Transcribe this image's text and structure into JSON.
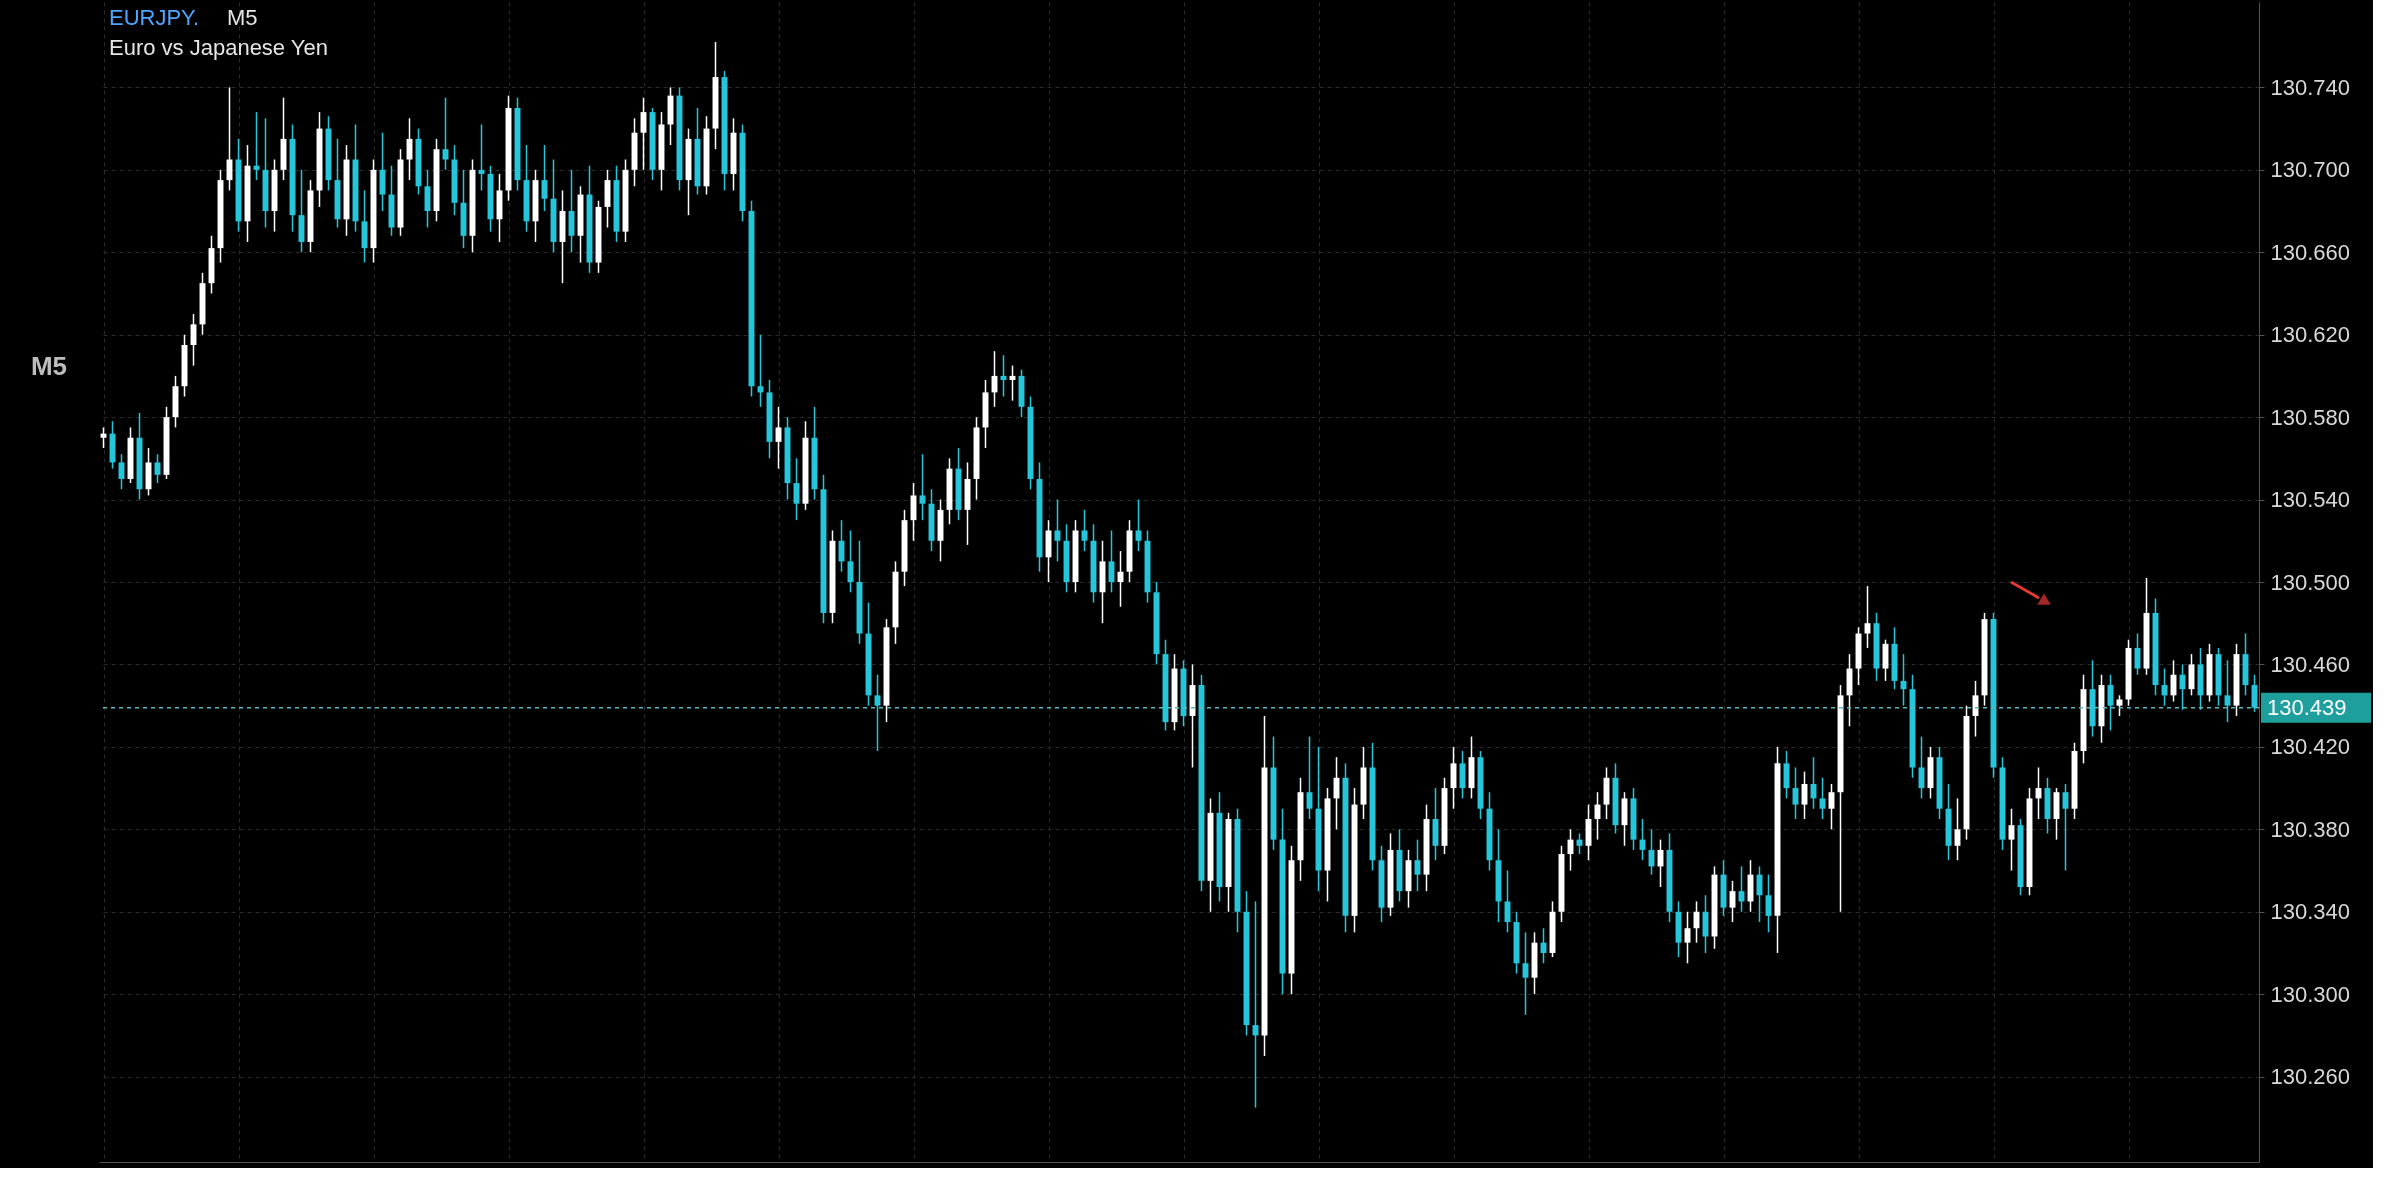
{
  "chart_data": {
    "type": "candlestick",
    "title": "EURJPY.",
    "subtitle": "Euro vs Japanese Yen",
    "annotations": [
      "M5",
      "M5"
    ],
    "colors": [
      "#ffffff",
      "#26c6da",
      "#26c6da",
      "#ffffff",
      "#26c6da",
      "#ffffff",
      "#26c6da",
      "#ffffff",
      "#ffffff",
      "#ffffff",
      "#ffffff",
      "#ffffff",
      "#ffffff",
      "#ffffff",
      "#ffffff",
      "#26c6da",
      "#ffffff",
      "#26c6da",
      "#26c6da",
      "#ffffff",
      "#ffffff",
      "#26c6da",
      "#26c6da",
      "#ffffff",
      "#ffffff",
      "#26c6da",
      "#26c6da",
      "#ffffff",
      "#26c6da",
      "#26c6da",
      "#ffffff",
      "#26c6da",
      "#26c6da",
      "#ffffff",
      "#ffffff",
      "#26c6da",
      "#26c6da",
      "#ffffff",
      "#26c6da",
      "#26c6da",
      "#26c6da",
      "#ffffff",
      "#26c6da",
      "#26c6da",
      "#ffffff",
      "#ffffff",
      "#26c6da",
      "#26c6da",
      "#ffffff",
      "#26c6da",
      "#26c6da",
      "#ffffff",
      "#26c6da",
      "#ffffff",
      "#26c6da",
      "#ffffff",
      "#ffffff",
      "#26c6da",
      "#ffffff",
      "#ffffff",
      "#ffffff",
      "#26c6da",
      "#ffffff",
      "#ffffff",
      "#26c6da",
      "#ffffff",
      "#26c6da",
      "#ffffff",
      "#ffffff",
      "#26c6da",
      "#ffffff",
      "#26c6da",
      "#26c6da",
      "#26c6da",
      "#26c6da",
      "#ffffff",
      "#26c6da",
      "#26c6da",
      "#ffffff",
      "#26c6da",
      "#26c6da",
      "#ffffff",
      "#26c6da",
      "#26c6da",
      "#26c6da",
      "#26c6da",
      "#26c6da",
      "#ffffff",
      "#ffffff",
      "#ffffff",
      "#ffffff",
      "#26c6da",
      "#26c6da",
      "#ffffff",
      "#ffffff",
      "#26c6da",
      "#ffffff",
      "#ffffff",
      "#ffffff",
      "#ffffff",
      "#26c6da",
      "#ffffff",
      "#26c6da",
      "#26c6da",
      "#26c6da",
      "#ffffff",
      "#26c6da",
      "#26c6da",
      "#ffffff",
      "#26c6da",
      "#26c6da",
      "#ffffff",
      "#26c6da",
      "#ffffff",
      "#ffffff",
      "#26c6da",
      "#26c6da",
      "#26c6da",
      "#26c6da",
      "#ffffff",
      "#26c6da",
      "#ffffff",
      "#26c6da",
      "#ffffff",
      "#26c6da",
      "#ffffff",
      "#26c6da",
      "#26c6da",
      "#26c6da",
      "#ffffff",
      "#26c6da",
      "#26c6da",
      "#ffffff",
      "#ffffff",
      "#26c6da",
      "#26c6da",
      "#ffffff",
      "#ffffff",
      "#26c6da",
      "#ffffff",
      "#ffffff",
      "#26c6da",
      "#26c6da",
      "#ffffff",
      "#26c6da",
      "#ffffff",
      "#26c6da",
      "#ffffff",
      "#26c6da",
      "#ffffff",
      "#ffffff",
      "#26c6da",
      "#ffffff",
      "#26c6da",
      "#26c6da",
      "#26c6da",
      "#26c6da",
      "#26c6da",
      "#26c6da",
      "#ffffff",
      "#26c6da",
      "#ffffff",
      "#ffffff",
      "#ffffff",
      "#26c6da",
      "#ffffff",
      "#ffffff",
      "#ffffff",
      "#26c6da",
      "#ffffff",
      "#26c6da",
      "#26c6da",
      "#26c6da",
      "#ffffff",
      "#26c6da",
      "#26c6da",
      "#ffffff",
      "#ffffff",
      "#26c6da",
      "#ffffff",
      "#26c6da",
      "#ffffff",
      "#26c6da",
      "#ffffff",
      "#26c6da",
      "#26c6da",
      "#ffffff",
      "#26c6da",
      "#26c6da",
      "#ffffff",
      "#26c6da",
      "#26c6da",
      "#ffffff",
      "#ffffff",
      "#ffffff",
      "#ffffff",
      "#ffffff",
      "#26c6da",
      "#ffffff",
      "#26c6da",
      "#26c6da",
      "#26c6da",
      "#26c6da",
      "#ffffff",
      "#26c6da",
      "#26c6da",
      "#ffffff",
      "#ffffff",
      "#ffffff",
      "#ffffff",
      "#26c6da",
      "#26c6da",
      "#ffffff",
      "#26c6da",
      "#ffffff",
      "#ffffff",
      "#26c6da",
      "#ffffff",
      "#26c6da",
      "#ffffff",
      "#ffffff",
      "#26c6da",
      "#ffffff",
      "#26c6da",
      "#ffffff",
      "#ffffff",
      "#26c6da",
      "#ffffff",
      "#26c6da",
      "#26c6da",
      "#ffffff",
      "#26c6da",
      "#ffffff",
      "#26c6da",
      "#ffffff",
      "#26c6da",
      "#26c6da",
      "#ffffff",
      "#26c6da",
      "#26c6da"
    ],
    "ylim": [
      130.221,
      130.779
    ],
    "yticks": [
      {
        "value": 130.26,
        "label": "130.260"
      },
      {
        "value": 130.3,
        "label": "130.300"
      },
      {
        "value": 130.34,
        "label": "130.340"
      },
      {
        "value": 130.38,
        "label": "130.380"
      },
      {
        "value": 130.42,
        "label": "130.420"
      },
      {
        "value": 130.46,
        "label": "130.460"
      },
      {
        "value": 130.5,
        "label": "130.500"
      },
      {
        "value": 130.54,
        "label": "130.540"
      },
      {
        "value": 130.58,
        "label": "130.580"
      },
      {
        "value": 130.62,
        "label": "130.620"
      },
      {
        "value": 130.66,
        "label": "130.660"
      },
      {
        "value": 130.7,
        "label": "130.700"
      },
      {
        "value": 130.74,
        "label": "130.740"
      }
    ],
    "grid": true,
    "ref_lines": [
      {
        "axis": "y",
        "value": 130.439,
        "label": "130.439",
        "color": "#5fb8b8",
        "line_style": "dashed"
      }
    ],
    "categories": [
      null,
      null,
      null,
      null,
      null,
      null,
      null,
      null,
      null,
      null,
      null,
      null,
      null,
      null,
      null,
      null,
      null,
      null,
      null,
      null,
      null,
      null,
      null,
      null,
      null,
      null,
      null,
      null,
      null,
      null,
      null,
      null,
      null,
      null,
      null,
      null,
      null,
      null,
      null,
      null,
      null,
      null,
      null,
      null,
      null,
      null,
      null,
      null,
      null,
      null,
      null,
      null,
      null,
      null,
      null,
      null,
      null,
      null,
      null,
      null,
      null,
      null,
      null,
      null,
      null,
      null,
      null,
      null,
      null,
      null,
      null,
      null,
      null,
      null,
      null,
      null,
      null,
      null,
      null,
      null,
      null,
      null,
      null,
      null,
      null,
      null,
      null,
      null,
      null,
      null,
      null,
      null,
      null,
      null,
      null,
      null,
      null,
      null,
      null,
      null,
      null,
      null,
      null,
      null,
      null,
      null,
      null,
      null,
      null,
      null,
      null,
      null,
      null,
      null,
      null,
      null,
      null,
      null,
      null,
      null,
      null,
      null,
      null,
      null,
      null,
      null,
      null,
      null,
      null,
      null,
      null,
      null,
      null,
      null,
      null,
      null,
      null,
      null,
      null,
      null,
      null,
      null,
      null,
      null,
      null,
      null,
      null,
      null,
      null,
      null,
      null,
      null,
      null,
      null,
      null,
      null,
      null,
      null,
      null,
      null,
      null,
      null,
      null,
      null,
      null,
      null,
      null,
      null,
      null,
      null,
      null,
      null,
      null,
      null,
      null,
      null,
      null,
      null,
      null,
      null,
      null,
      null,
      null,
      null,
      null,
      null,
      null,
      null,
      null,
      null,
      null,
      null,
      null,
      null,
      null,
      null,
      null,
      null,
      null,
      null,
      null,
      null,
      null,
      null,
      null,
      null,
      null,
      null,
      null,
      null,
      null,
      null,
      null,
      null,
      null,
      null,
      null,
      null,
      null,
      null,
      null,
      null,
      null,
      null,
      null,
      null,
      null,
      null,
      null,
      null,
      null,
      null,
      null,
      null,
      null,
      null,
      null,
      null,
      null,
      null
    ],
    "ohlc": [
      [
        130.57,
        130.575,
        130.565,
        130.572
      ],
      [
        130.572,
        130.578,
        130.555,
        130.558
      ],
      [
        130.558,
        130.562,
        130.545,
        130.55
      ],
      [
        130.55,
        130.575,
        130.548,
        130.57
      ],
      [
        130.57,
        130.582,
        130.54,
        130.545
      ],
      [
        130.545,
        130.565,
        130.542,
        130.558
      ],
      [
        130.558,
        130.562,
        130.548,
        130.552
      ],
      [
        130.552,
        130.585,
        130.55,
        130.58
      ],
      [
        130.58,
        130.6,
        130.575,
        130.595
      ],
      [
        130.595,
        130.62,
        130.59,
        130.615
      ],
      [
        130.615,
        130.63,
        130.605,
        130.625
      ],
      [
        130.625,
        130.65,
        130.62,
        130.645
      ],
      [
        130.645,
        130.668,
        130.64,
        130.662
      ],
      [
        130.662,
        130.7,
        130.655,
        130.695
      ],
      [
        130.695,
        130.74,
        130.69,
        130.705
      ],
      [
        130.705,
        130.715,
        130.67,
        130.675
      ],
      [
        130.675,
        130.712,
        130.665,
        130.702
      ],
      [
        130.702,
        130.728,
        130.695,
        130.7
      ],
      [
        130.7,
        130.725,
        130.672,
        130.68
      ],
      [
        130.68,
        130.705,
        130.67,
        130.7
      ],
      [
        130.7,
        130.735,
        130.695,
        130.715
      ],
      [
        130.715,
        130.722,
        130.67,
        130.678
      ],
      [
        130.678,
        130.7,
        130.66,
        130.665
      ],
      [
        130.665,
        130.695,
        130.66,
        130.69
      ],
      [
        130.69,
        130.728,
        130.682,
        130.72
      ],
      [
        130.72,
        130.726,
        130.69,
        130.695
      ],
      [
        130.695,
        130.715,
        130.672,
        130.676
      ],
      [
        130.676,
        130.712,
        130.668,
        130.705
      ],
      [
        130.705,
        130.722,
        130.67,
        130.675
      ],
      [
        130.675,
        130.69,
        130.655,
        130.662
      ],
      [
        130.662,
        130.705,
        130.655,
        130.7
      ],
      [
        130.7,
        130.718,
        130.68,
        130.688
      ],
      [
        130.688,
        130.702,
        130.668,
        130.672
      ],
      [
        130.672,
        130.71,
        130.668,
        130.705
      ],
      [
        130.705,
        130.725,
        130.695,
        130.715
      ],
      [
        130.715,
        130.72,
        130.688,
        130.692
      ],
      [
        130.692,
        130.7,
        130.672,
        130.68
      ],
      [
        130.68,
        130.715,
        130.675,
        130.71
      ],
      [
        130.71,
        130.735,
        130.7,
        130.705
      ],
      [
        130.705,
        130.712,
        130.678,
        130.684
      ],
      [
        130.684,
        130.7,
        130.662,
        130.668
      ],
      [
        130.668,
        130.705,
        130.66,
        130.7
      ],
      [
        130.7,
        130.722,
        130.69,
        130.698
      ],
      [
        130.698,
        130.702,
        130.67,
        130.676
      ],
      [
        130.676,
        130.698,
        130.665,
        130.69
      ],
      [
        130.69,
        130.736,
        130.685,
        130.73
      ],
      [
        130.73,
        130.735,
        130.69,
        130.695
      ],
      [
        130.695,
        130.712,
        130.67,
        130.675
      ],
      [
        130.675,
        130.7,
        130.665,
        130.695
      ],
      [
        130.695,
        130.712,
        130.68,
        130.686
      ],
      [
        130.686,
        130.705,
        130.66,
        130.665
      ],
      [
        130.665,
        130.69,
        130.645,
        130.68
      ],
      [
        130.68,
        130.7,
        130.66,
        130.668
      ],
      [
        130.668,
        130.692,
        130.655,
        130.688
      ],
      [
        130.688,
        130.702,
        130.65,
        130.655
      ],
      [
        130.655,
        130.685,
        130.65,
        130.682
      ],
      [
        130.682,
        130.7,
        130.672,
        130.695
      ],
      [
        130.695,
        130.702,
        130.665,
        130.67
      ],
      [
        130.67,
        130.705,
        130.665,
        130.7
      ],
      [
        130.7,
        130.725,
        130.692,
        130.718
      ],
      [
        130.718,
        130.735,
        130.7,
        130.728
      ],
      [
        130.728,
        130.73,
        130.695,
        130.7
      ],
      [
        130.7,
        130.728,
        130.69,
        130.722
      ],
      [
        130.722,
        130.74,
        130.712,
        130.736
      ],
      [
        130.736,
        130.74,
        130.69,
        130.695
      ],
      [
        130.695,
        130.72,
        130.678,
        130.715
      ],
      [
        130.715,
        130.73,
        130.688,
        130.692
      ],
      [
        130.692,
        130.726,
        130.688,
        130.72
      ],
      [
        130.72,
        130.762,
        130.71,
        130.745
      ],
      [
        130.745,
        130.748,
        130.69,
        130.698
      ],
      [
        130.698,
        130.725,
        130.69,
        130.718
      ],
      [
        130.718,
        130.722,
        130.675,
        130.68
      ],
      [
        130.68,
        130.685,
        130.59,
        130.595
      ],
      [
        130.595,
        130.62,
        130.585,
        130.592
      ],
      [
        130.592,
        130.598,
        130.56,
        130.568
      ],
      [
        130.568,
        130.585,
        130.555,
        130.575
      ],
      [
        130.575,
        130.58,
        130.54,
        130.548
      ],
      [
        130.548,
        130.56,
        130.53,
        130.538
      ],
      [
        130.538,
        130.578,
        130.535,
        130.57
      ],
      [
        130.57,
        130.585,
        130.54,
        130.545
      ],
      [
        130.545,
        130.552,
        130.48,
        130.485
      ],
      [
        130.485,
        130.525,
        130.48,
        130.52
      ],
      [
        130.52,
        130.53,
        130.505,
        130.51
      ],
      [
        130.51,
        130.525,
        130.495,
        130.5
      ],
      [
        130.5,
        130.52,
        130.47,
        130.475
      ],
      [
        130.475,
        130.49,
        130.44,
        130.445
      ],
      [
        130.445,
        130.455,
        130.418,
        130.44
      ],
      [
        130.44,
        130.482,
        130.432,
        130.478
      ],
      [
        130.478,
        130.51,
        130.47,
        130.505
      ],
      [
        130.505,
        130.535,
        130.498,
        130.53
      ],
      [
        130.53,
        130.548,
        130.52,
        130.542
      ],
      [
        130.542,
        130.562,
        130.53,
        130.538
      ],
      [
        130.538,
        130.545,
        130.515,
        130.52
      ],
      [
        130.52,
        130.54,
        130.51,
        130.535
      ],
      [
        130.535,
        130.56,
        130.528,
        130.555
      ],
      [
        130.555,
        130.565,
        130.53,
        130.535
      ],
      [
        130.535,
        130.558,
        130.518,
        130.55
      ],
      [
        130.55,
        130.58,
        130.54,
        130.575
      ],
      [
        130.575,
        130.598,
        130.565,
        130.592
      ],
      [
        130.592,
        130.612,
        130.585,
        130.6
      ],
      [
        130.6,
        130.61,
        130.59,
        130.598
      ],
      [
        130.598,
        130.605,
        130.588,
        130.6
      ],
      [
        130.6,
        130.603,
        130.58,
        130.585
      ],
      [
        130.585,
        130.59,
        130.545,
        130.55
      ],
      [
        130.55,
        130.558,
        130.505,
        130.512
      ],
      [
        130.512,
        130.53,
        130.5,
        130.525
      ],
      [
        130.525,
        130.54,
        130.51,
        130.52
      ],
      [
        130.52,
        130.528,
        130.495,
        130.5
      ],
      [
        130.5,
        130.53,
        130.495,
        130.525
      ],
      [
        130.525,
        130.535,
        130.515,
        130.52
      ],
      [
        130.52,
        130.528,
        130.49,
        130.495
      ],
      [
        130.495,
        130.52,
        130.48,
        130.51
      ],
      [
        130.51,
        130.525,
        130.495,
        130.5
      ],
      [
        130.5,
        130.515,
        130.488,
        130.505
      ],
      [
        130.505,
        130.53,
        130.5,
        130.525
      ],
      [
        130.525,
        130.54,
        130.515,
        130.52
      ],
      [
        130.52,
        130.525,
        130.49,
        130.495
      ],
      [
        130.495,
        130.5,
        130.46,
        130.465
      ],
      [
        130.465,
        130.472,
        130.428,
        130.432
      ],
      [
        130.432,
        130.465,
        130.428,
        130.458
      ],
      [
        130.458,
        130.462,
        130.43,
        130.435
      ],
      [
        130.435,
        130.46,
        130.41,
        130.45
      ],
      [
        130.45,
        130.455,
        130.35,
        130.355
      ],
      [
        130.355,
        130.395,
        130.34,
        130.388
      ],
      [
        130.388,
        130.398,
        130.345,
        130.352
      ],
      [
        130.352,
        130.388,
        130.34,
        130.385
      ],
      [
        130.385,
        130.39,
        130.33,
        130.34
      ],
      [
        130.34,
        130.35,
        130.28,
        130.285
      ],
      [
        130.285,
        130.345,
        130.245,
        130.28
      ],
      [
        130.28,
        130.435,
        130.27,
        130.41
      ],
      [
        130.41,
        130.425,
        130.37,
        130.375
      ],
      [
        130.375,
        130.39,
        130.3,
        130.31
      ],
      [
        130.31,
        130.372,
        130.3,
        130.365
      ],
      [
        130.365,
        130.405,
        130.355,
        130.398
      ],
      [
        130.398,
        130.425,
        130.385,
        130.39
      ],
      [
        130.39,
        130.42,
        130.35,
        130.36
      ],
      [
        130.36,
        130.4,
        130.345,
        130.395
      ],
      [
        130.395,
        130.415,
        130.38,
        130.405
      ],
      [
        130.405,
        130.412,
        130.33,
        130.338
      ],
      [
        130.338,
        130.4,
        130.33,
        130.392
      ],
      [
        130.392,
        130.42,
        130.385,
        130.41
      ],
      [
        130.41,
        130.422,
        130.36,
        130.365
      ],
      [
        130.365,
        130.372,
        130.335,
        130.342
      ],
      [
        130.342,
        130.378,
        130.338,
        130.37
      ],
      [
        130.37,
        130.38,
        130.345,
        130.35
      ],
      [
        130.35,
        130.37,
        130.342,
        130.365
      ],
      [
        130.365,
        130.375,
        130.35,
        130.358
      ],
      [
        130.358,
        130.392,
        130.35,
        130.385
      ],
      [
        130.385,
        130.4,
        130.365,
        130.372
      ],
      [
        130.372,
        130.405,
        130.368,
        130.4
      ],
      [
        130.4,
        130.42,
        130.39,
        130.412
      ],
      [
        130.412,
        130.418,
        130.395,
        130.4
      ],
      [
        130.4,
        130.425,
        130.395,
        130.415
      ],
      [
        130.415,
        130.418,
        130.385,
        130.39
      ],
      [
        130.39,
        130.398,
        130.36,
        130.365
      ],
      [
        130.365,
        130.38,
        130.335,
        130.345
      ],
      [
        130.345,
        130.36,
        130.33,
        130.335
      ],
      [
        130.335,
        130.34,
        130.31,
        130.315
      ],
      [
        130.315,
        130.33,
        130.29,
        130.308
      ],
      [
        130.308,
        130.33,
        130.3,
        130.325
      ],
      [
        130.325,
        130.332,
        130.315,
        130.32
      ],
      [
        130.32,
        130.345,
        130.318,
        130.34
      ],
      [
        130.34,
        130.372,
        130.335,
        130.368
      ],
      [
        130.368,
        130.38,
        130.36,
        130.375
      ],
      [
        130.375,
        130.378,
        130.368,
        130.372
      ],
      [
        130.372,
        130.392,
        130.365,
        130.385
      ],
      [
        130.385,
        130.398,
        130.375,
        130.392
      ],
      [
        130.392,
        130.41,
        130.385,
        130.405
      ],
      [
        130.405,
        130.412,
        130.378,
        130.382
      ],
      [
        130.382,
        130.398,
        130.372,
        130.395
      ],
      [
        130.395,
        130.4,
        130.37,
        130.375
      ],
      [
        130.375,
        130.385,
        130.365,
        130.37
      ],
      [
        130.37,
        130.38,
        130.358,
        130.362
      ],
      [
        130.362,
        130.375,
        130.352,
        130.37
      ],
      [
        130.37,
        130.378,
        130.335,
        130.34
      ],
      [
        130.34,
        130.345,
        130.318,
        130.325
      ],
      [
        130.325,
        130.34,
        130.315,
        130.332
      ],
      [
        130.332,
        130.345,
        130.325,
        130.34
      ],
      [
        130.34,
        130.348,
        130.32,
        130.328
      ],
      [
        130.328,
        130.362,
        130.322,
        130.358
      ],
      [
        130.358,
        130.365,
        130.338,
        130.342
      ],
      [
        130.342,
        130.355,
        130.335,
        130.35
      ],
      [
        130.35,
        130.362,
        130.34,
        130.345
      ],
      [
        130.345,
        130.365,
        130.34,
        130.358
      ],
      [
        130.358,
        130.362,
        130.335,
        130.348
      ],
      [
        130.348,
        130.358,
        130.33,
        130.338
      ],
      [
        130.338,
        130.42,
        130.32,
        130.412
      ],
      [
        130.412,
        130.418,
        130.395,
        130.4
      ],
      [
        130.4,
        130.41,
        130.385,
        130.392
      ],
      [
        130.392,
        130.408,
        130.385,
        130.402
      ],
      [
        130.402,
        130.415,
        130.39,
        130.395
      ],
      [
        130.395,
        130.405,
        130.385,
        130.39
      ],
      [
        130.39,
        130.402,
        130.38,
        130.398
      ],
      [
        130.398,
        130.45,
        130.34,
        130.445
      ],
      [
        130.445,
        130.465,
        130.43,
        130.458
      ],
      [
        130.458,
        130.478,
        130.45,
        130.475
      ],
      [
        130.475,
        130.498,
        130.468,
        130.48
      ],
      [
        130.48,
        130.485,
        130.452,
        130.458
      ],
      [
        130.458,
        130.472,
        130.452,
        130.47
      ],
      [
        130.47,
        130.478,
        130.448,
        130.452
      ],
      [
        130.452,
        130.465,
        130.44,
        130.448
      ],
      [
        130.448,
        130.455,
        130.405,
        130.41
      ],
      [
        130.41,
        130.425,
        130.395,
        130.4
      ],
      [
        130.4,
        130.42,
        130.395,
        130.415
      ],
      [
        130.415,
        130.42,
        130.385,
        130.39
      ],
      [
        130.39,
        130.402,
        130.365,
        130.372
      ],
      [
        130.372,
        130.395,
        130.365,
        130.38
      ],
      [
        130.38,
        130.44,
        130.375,
        130.435
      ],
      [
        130.435,
        130.452,
        130.425,
        130.445
      ],
      [
        130.445,
        130.485,
        130.44,
        130.482
      ],
      [
        130.482,
        130.485,
        130.405,
        130.41
      ],
      [
        130.41,
        130.415,
        130.37,
        130.375
      ],
      [
        130.375,
        130.39,
        130.36,
        130.382
      ],
      [
        130.382,
        130.385,
        130.348,
        130.352
      ],
      [
        130.352,
        130.4,
        130.348,
        130.395
      ],
      [
        130.395,
        130.41,
        130.385,
        130.4
      ],
      [
        130.4,
        130.405,
        130.378,
        130.385
      ],
      [
        130.385,
        130.4,
        130.375,
        130.398
      ],
      [
        130.398,
        130.402,
        130.36,
        130.39
      ],
      [
        130.39,
        130.422,
        130.385,
        130.418
      ],
      [
        130.418,
        130.455,
        130.412,
        130.448
      ],
      [
        130.448,
        130.462,
        130.425,
        130.43
      ],
      [
        130.43,
        130.455,
        130.422,
        130.45
      ],
      [
        130.45,
        130.455,
        130.428,
        130.44
      ],
      [
        130.44,
        130.445,
        130.435,
        130.443
      ],
      [
        130.443,
        130.472,
        130.44,
        130.468
      ],
      [
        130.468,
        130.475,
        130.455,
        130.458
      ],
      [
        130.458,
        130.502,
        130.455,
        130.485
      ],
      [
        130.485,
        130.492,
        130.445,
        130.45
      ],
      [
        130.45,
        130.458,
        130.44,
        130.445
      ],
      [
        130.445,
        130.462,
        130.442,
        130.455
      ],
      [
        130.455,
        130.46,
        130.438,
        130.448
      ],
      [
        130.448,
        130.465,
        130.445,
        130.46
      ],
      [
        130.46,
        130.468,
        130.438,
        130.445
      ],
      [
        130.445,
        130.47,
        130.442,
        130.465
      ],
      [
        130.465,
        130.468,
        130.44,
        130.445
      ],
      [
        130.445,
        130.462,
        130.432,
        130.44
      ],
      [
        130.44,
        130.47,
        130.435,
        130.465
      ],
      [
        130.465,
        130.475,
        130.445,
        130.45
      ],
      [
        130.45,
        130.455,
        130.437,
        130.439
      ]
    ]
  }
}
